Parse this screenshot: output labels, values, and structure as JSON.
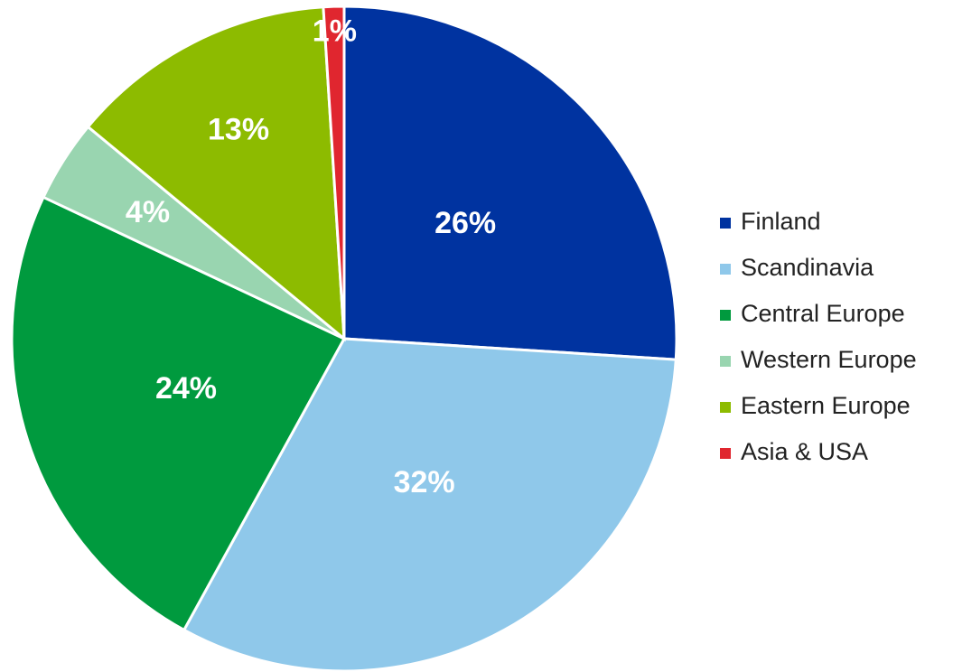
{
  "chart_data": {
    "type": "pie",
    "categories": [
      "Finland",
      "Scandinavia",
      "Central Europe",
      "Western Europe",
      "Eastern Europe",
      "Asia & USA"
    ],
    "values": [
      26,
      32,
      24,
      4,
      13,
      1
    ],
    "value_labels": [
      "26%",
      "32%",
      "24%",
      "4%",
      "13%",
      "1%"
    ],
    "colors": [
      "#0033a0",
      "#8fc8ea",
      "#009a3e",
      "#99d5b0",
      "#8dbb00",
      "#e0262f"
    ],
    "legend": "right"
  }
}
